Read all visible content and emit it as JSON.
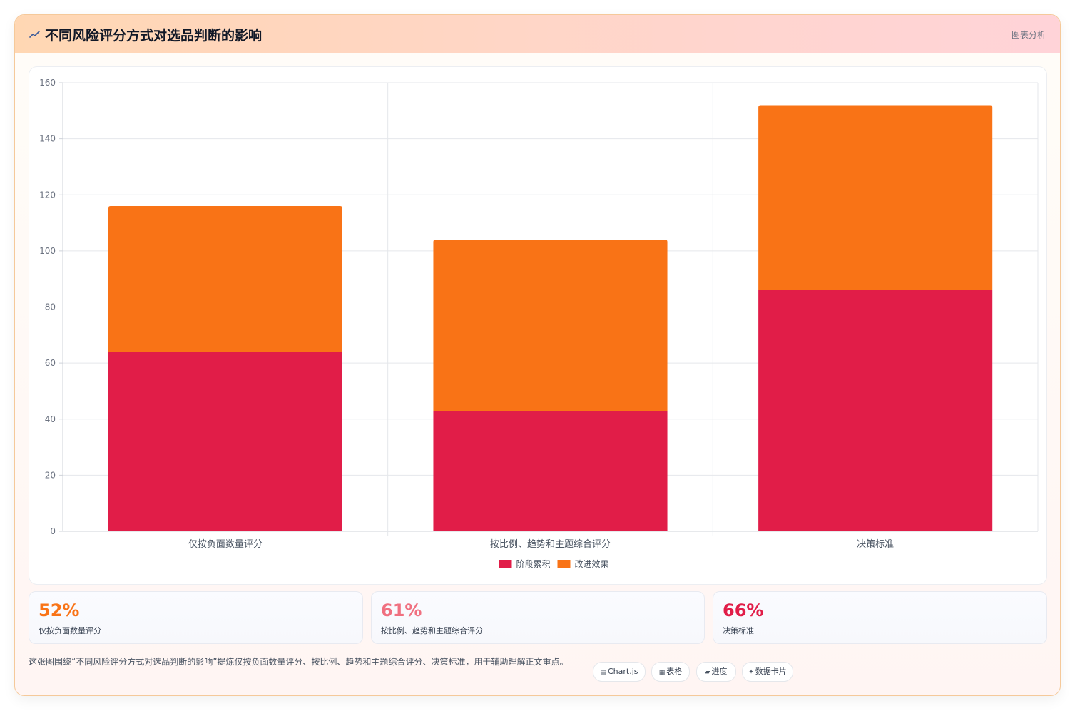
{
  "header": {
    "title": "不同风险评分方式对选品判断的影响",
    "right_label": "图表分析"
  },
  "chart_data": {
    "type": "bar",
    "stacked": true,
    "categories": [
      "仅按负面数量评分",
      "按比例、趋势和主题综合评分",
      "决策标准"
    ],
    "series": [
      {
        "name": "阶段累积",
        "color": "#e11d48",
        "values": [
          64,
          43,
          86
        ]
      },
      {
        "name": "改进效果",
        "color": "#f97316",
        "values": [
          52,
          61,
          66
        ]
      }
    ],
    "ylim": [
      0,
      160
    ],
    "yticks": [
      0,
      20,
      40,
      60,
      80,
      100,
      120,
      140,
      160
    ],
    "grid": true,
    "legend_position": "bottom"
  },
  "stats": [
    {
      "value": "52%",
      "label": "仅按负面数量评分",
      "color": "#f97316"
    },
    {
      "value": "61%",
      "label": "按比例、趋势和主题综合评分",
      "color": "#f07080"
    },
    {
      "value": "66%",
      "label": "决策标准",
      "color": "#e11d48"
    }
  ],
  "description": "这张图围绕“不同风险评分方式对选品判断的影响”提炼仅按负面数量评分、按比例、趋势和主题综合评分、决策标准，用于辅助理解正文重点。",
  "tags": [
    {
      "icon": "chart-icon",
      "label": "Chart.js"
    },
    {
      "icon": "table-icon",
      "label": "表格"
    },
    {
      "icon": "progress-icon",
      "label": "进度"
    },
    {
      "icon": "card-icon",
      "label": "数据卡片"
    }
  ]
}
